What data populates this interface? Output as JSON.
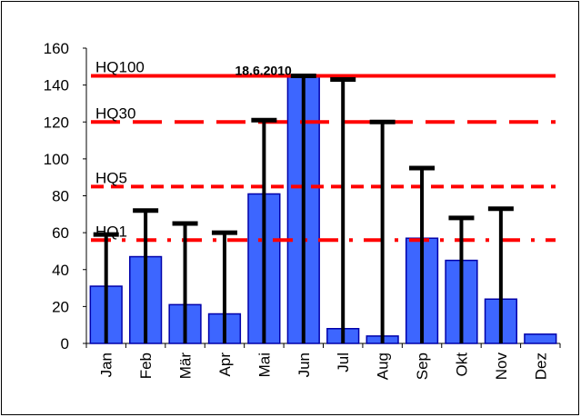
{
  "chart_data": {
    "type": "bar",
    "title": "",
    "xlabel": "",
    "ylabel": "",
    "ylim": [
      0,
      160
    ],
    "yticks": [
      0,
      20,
      40,
      60,
      80,
      100,
      120,
      140,
      160
    ],
    "grid": false,
    "categories": [
      "Jan",
      "Feb",
      "Mär",
      "Apr",
      "Mai",
      "Jun",
      "Jul",
      "Aug",
      "Sep",
      "Okt",
      "Nov",
      "Dez"
    ],
    "series": [
      {
        "type": "bar",
        "color": "#3d66ff",
        "values": [
          31,
          47,
          21,
          16,
          81,
          145,
          8,
          4,
          57,
          45,
          24,
          5
        ]
      },
      {
        "type": "error_high",
        "color": "#000000",
        "values": [
          59,
          72,
          65,
          60,
          121,
          145,
          143,
          120,
          95,
          68,
          73,
          null
        ]
      }
    ],
    "reference_lines": [
      {
        "label": "HQ100",
        "value": 145,
        "style": "solid",
        "color": "#ff0000"
      },
      {
        "label": "HQ30",
        "value": 120,
        "style": "longdash",
        "color": "#ff0000"
      },
      {
        "label": "HQ5",
        "value": 85,
        "style": "dash",
        "color": "#ff0000"
      },
      {
        "label": "HQ1",
        "value": 56,
        "style": "dashdot",
        "color": "#ff0000"
      }
    ],
    "annotations": [
      {
        "text": "18.6.2010",
        "category": "Jun",
        "value": 145
      }
    ]
  }
}
